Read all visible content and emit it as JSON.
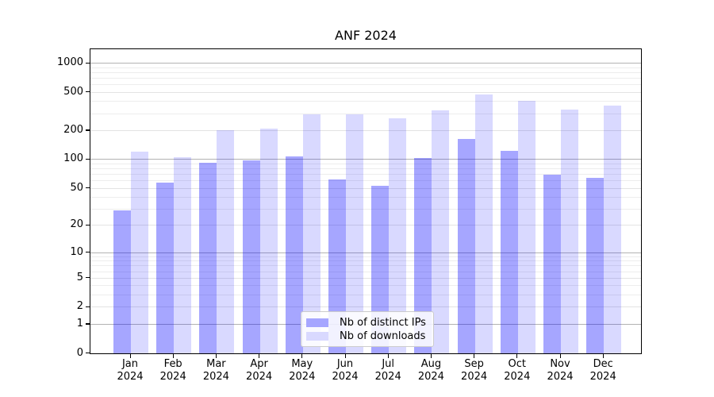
{
  "title": "ANF 2024",
  "legend": {
    "items": [
      {
        "label": "Nb of distinct IPs",
        "color": "#a6a6ff"
      },
      {
        "label": "Nb of downloads",
        "color": "#d9d9ff"
      }
    ]
  },
  "chart_data": {
    "type": "bar",
    "title": "ANF 2024",
    "xlabel": "",
    "ylabel": "",
    "categories": [
      "Jan 2024",
      "Feb 2024",
      "Mar 2024",
      "Apr 2024",
      "May 2024",
      "Jun 2024",
      "Jul 2024",
      "Aug 2024",
      "Sep 2024",
      "Oct 2024",
      "Nov 2024",
      "Dec 2024"
    ],
    "series": [
      {
        "name": "Nb of distinct IPs",
        "color": "rgba(0,0,255,0.35)",
        "values": [
          29,
          57,
          92,
          97,
          106,
          61,
          52,
          102,
          162,
          122,
          69,
          64
        ]
      },
      {
        "name": "Nb of downloads",
        "color": "rgba(0,0,255,0.15)",
        "values": [
          120,
          105,
          200,
          207,
          290,
          290,
          267,
          322,
          468,
          402,
          325,
          360
        ]
      }
    ],
    "yscale": "log1p",
    "yticks": [
      0,
      1,
      2,
      5,
      10,
      20,
      50,
      100,
      200,
      500,
      1000
    ],
    "ylim": [
      0,
      1400
    ],
    "grid": true,
    "legend_position": "lower center"
  },
  "colors": {
    "grid_major": "#b3b3b3",
    "grid_labeled_minor": "#e3e3e3",
    "grid_minor": "#ededed",
    "axis": "#000000",
    "legend_border": "#cccccc"
  }
}
